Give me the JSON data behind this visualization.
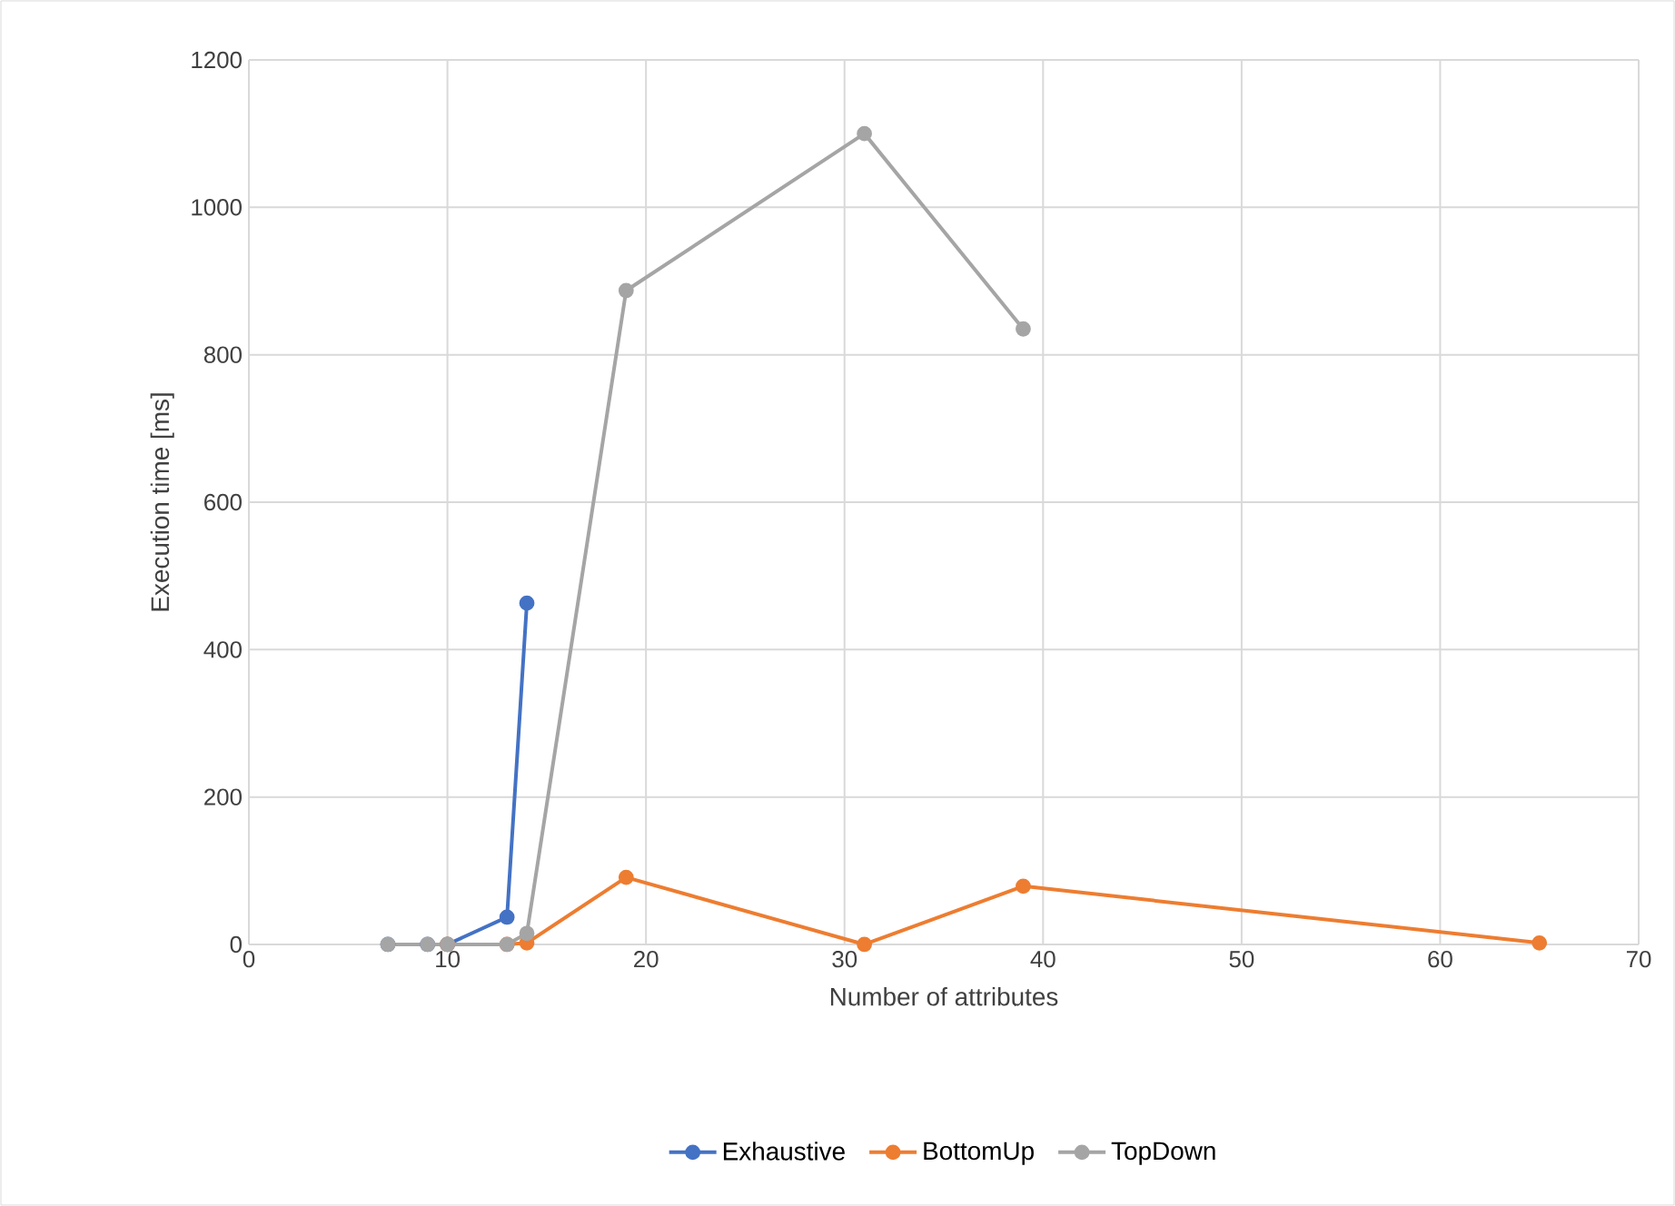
{
  "chart_data": {
    "type": "line",
    "xlabel": "Number of attributes",
    "ylabel": "Execution time [ms]",
    "xlim": [
      0,
      70
    ],
    "xticks": [
      0,
      10,
      20,
      30,
      40,
      50,
      60,
      70
    ],
    "ylim": [
      0,
      1200
    ],
    "yticks": [
      0,
      200,
      400,
      600,
      800,
      1000,
      1200
    ],
    "grid": true,
    "legend": "bottom",
    "marker": "circle",
    "line_style": "solid",
    "series": [
      {
        "name": "Exhaustive",
        "color": "#4472c4",
        "x": [
          7,
          9,
          10,
          13,
          14
        ],
        "values": [
          0,
          0,
          0,
          37,
          463
        ]
      },
      {
        "name": "BottomUp",
        "color": "#ed7d31",
        "x": [
          10,
          13,
          14,
          19,
          31,
          39,
          65
        ],
        "values": [
          0,
          0,
          2,
          91,
          0,
          79,
          2
        ]
      },
      {
        "name": "TopDown",
        "color": "#a5a5a5",
        "x": [
          7,
          9,
          10,
          13,
          14,
          19,
          31,
          39
        ],
        "values": [
          0,
          0,
          0,
          0,
          15,
          887,
          1100,
          835
        ]
      }
    ]
  }
}
